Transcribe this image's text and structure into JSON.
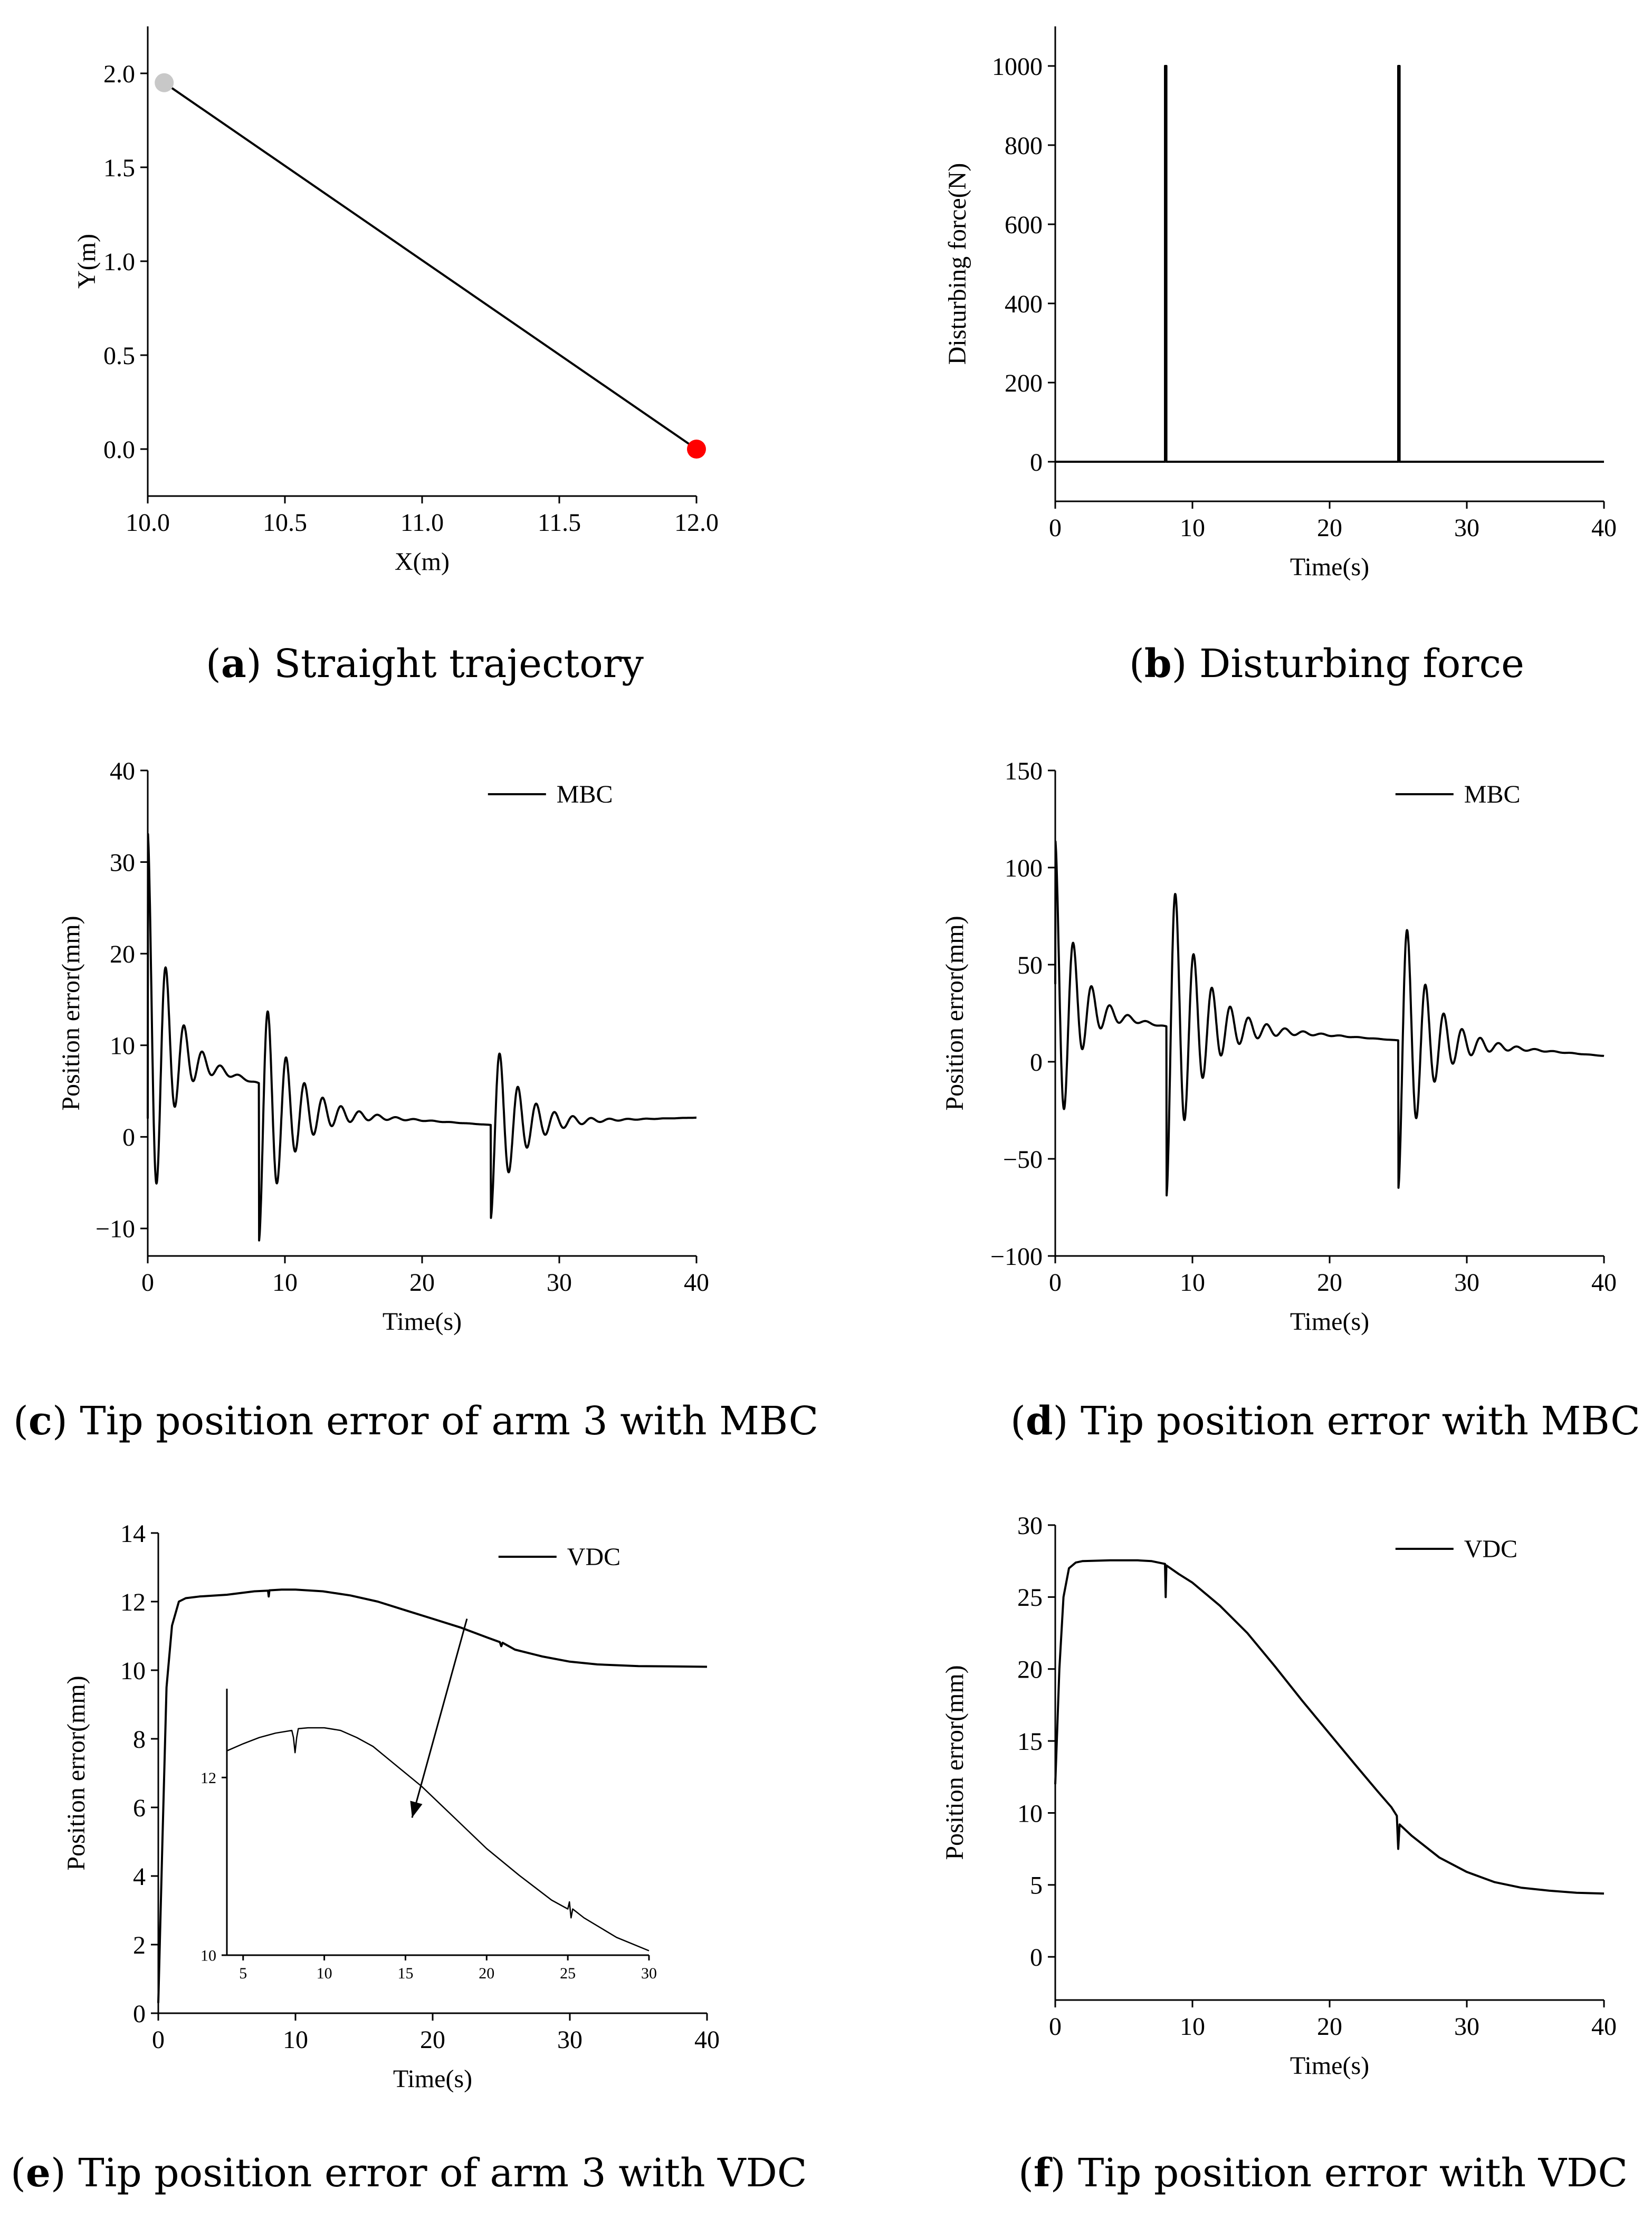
{
  "chart_data": [
    {
      "id": "a",
      "type": "line",
      "xlabel": "X(m)",
      "ylabel": "Y(m)",
      "xlim": [
        10.0,
        12.0
      ],
      "ylim": [
        -0.25,
        2.25
      ],
      "xticks": [
        10.0,
        10.5,
        11.0,
        11.5,
        12.0
      ],
      "xtick_labels": [
        "10.0",
        "10.5",
        "11.0",
        "11.5",
        "12.0"
      ],
      "yticks": [
        0.0,
        0.5,
        1.0,
        1.5,
        2.0
      ],
      "ytick_labels": [
        "0.0",
        "0.5",
        "1.0",
        "1.5",
        "2.0"
      ],
      "series": [
        {
          "name": "trajectory",
          "points": [
            [
              10.06,
              1.95
            ],
            [
              12.0,
              0.0
            ]
          ]
        }
      ],
      "markers": [
        {
          "name": "start-point",
          "x": 10.06,
          "y": 1.95,
          "color": "#c8c8c8"
        },
        {
          "name": "end-point",
          "x": 12.0,
          "y": 0.0,
          "color": "#ff0000"
        }
      ]
    },
    {
      "id": "b",
      "type": "line",
      "xlabel": "Time(s)",
      "ylabel": "Disturbing force(N)",
      "xlim": [
        0,
        40
      ],
      "ylim": [
        -100,
        1100
      ],
      "xticks": [
        0,
        10,
        20,
        30,
        40
      ],
      "xtick_labels": [
        "0",
        "10",
        "20",
        "30",
        "40"
      ],
      "yticks": [
        0,
        200,
        400,
        600,
        800,
        1000
      ],
      "ytick_labels": [
        "0",
        "200",
        "400",
        "600",
        "800",
        "1000"
      ],
      "series": [
        {
          "name": "force",
          "points": [
            [
              0,
              0
            ],
            [
              8,
              0
            ],
            [
              8,
              1000
            ],
            [
              8.1,
              1000
            ],
            [
              8.1,
              0
            ],
            [
              25,
              0
            ],
            [
              25,
              1000
            ],
            [
              25.1,
              1000
            ],
            [
              25.1,
              0
            ],
            [
              40,
              0
            ]
          ]
        }
      ]
    },
    {
      "id": "c",
      "type": "line",
      "xlabel": "Time(s)",
      "ylabel": "Position error(mm)",
      "xlim": [
        0,
        40
      ],
      "ylim": [
        -13,
        40
      ],
      "xticks": [
        0,
        10,
        20,
        30,
        40
      ],
      "xtick_labels": [
        "0",
        "10",
        "20",
        "30",
        "40"
      ],
      "yticks": [
        -10,
        0,
        10,
        20,
        30,
        40
      ],
      "ytick_labels": [
        "−10",
        "0",
        "10",
        "20",
        "30",
        "40"
      ],
      "legend": [
        "MBC"
      ],
      "series": [
        {
          "name": "MBC",
          "model": "damped",
          "start": 2,
          "segments": [
            {
              "t0": 0,
              "t1": 8.1,
              "base0": 10,
              "base1": 5.8,
              "amp": 23.5,
              "tau": 1.4,
              "freq": 0.75,
              "phase": 1.5708
            },
            {
              "t0": 8.1,
              "t1": 25,
              "base0": 3,
              "base1": 1.3,
              "amp": 14.5,
              "tau": 2.2,
              "freq": 0.75,
              "phase": -1.5708
            },
            {
              "t0": 25,
              "t1": 40,
              "base0": 1.5,
              "base1": 2.1,
              "amp": 10.5,
              "tau": 2.0,
              "freq": 0.75,
              "phase": -1.5708
            }
          ]
        }
      ]
    },
    {
      "id": "d",
      "type": "line",
      "xlabel": "Time(s)",
      "ylabel": "Position error(mm)",
      "xlim": [
        0,
        40
      ],
      "ylim": [
        -100,
        150
      ],
      "xticks": [
        0,
        10,
        20,
        30,
        40
      ],
      "xtick_labels": [
        "0",
        "10",
        "20",
        "30",
        "40"
      ],
      "yticks": [
        -100,
        -50,
        0,
        50,
        100,
        150
      ],
      "ytick_labels": [
        "−100",
        "−50",
        "0",
        "50",
        "100",
        "150"
      ],
      "legend": [
        "MBC"
      ],
      "series": [
        {
          "name": "MBC",
          "model": "damped",
          "start": 40,
          "segments": [
            {
              "t0": 0,
              "t1": 8.1,
              "base0": 30,
              "base1": 18,
              "amp": 85,
              "tau": 1.4,
              "freq": 0.75,
              "phase": 1.5708
            },
            {
              "t0": 8.1,
              "t1": 25,
              "base0": 20,
              "base1": 11,
              "amp": 90,
              "tau": 2.2,
              "freq": 0.75,
              "phase": -1.5708
            },
            {
              "t0": 25,
              "t1": 40,
              "base0": 12,
              "base1": 3,
              "amp": 78,
              "tau": 2.0,
              "freq": 0.75,
              "phase": -1.5708
            }
          ]
        }
      ]
    },
    {
      "id": "e",
      "type": "line",
      "xlabel": "Time(s)",
      "ylabel": "Position error(mm)",
      "xlim": [
        0,
        40
      ],
      "ylim": [
        0,
        14
      ],
      "xticks": [
        0,
        10,
        20,
        30,
        40
      ],
      "xtick_labels": [
        "0",
        "10",
        "20",
        "30",
        "40"
      ],
      "yticks": [
        0,
        2,
        4,
        6,
        8,
        10,
        12,
        14
      ],
      "ytick_labels": [
        "0",
        "2",
        "4",
        "6",
        "8",
        "10",
        "12",
        "14"
      ],
      "legend": [
        "VDC"
      ],
      "series": [
        {
          "name": "VDC",
          "points": [
            [
              0,
              0.3
            ],
            [
              0.3,
              5
            ],
            [
              0.6,
              9.5
            ],
            [
              1,
              11.3
            ],
            [
              1.5,
              12
            ],
            [
              2,
              12.1
            ],
            [
              3,
              12.15
            ],
            [
              5,
              12.2
            ],
            [
              7,
              12.3
            ],
            [
              8,
              12.32
            ],
            [
              8.05,
              12.15
            ],
            [
              8.1,
              12.33
            ],
            [
              9,
              12.35
            ],
            [
              10,
              12.35
            ],
            [
              12,
              12.3
            ],
            [
              14,
              12.18
            ],
            [
              16,
              12.0
            ],
            [
              18,
              11.75
            ],
            [
              20,
              11.5
            ],
            [
              22,
              11.25
            ],
            [
              24,
              10.95
            ],
            [
              24.9,
              10.82
            ],
            [
              25,
              10.7
            ],
            [
              25.1,
              10.8
            ],
            [
              26,
              10.6
            ],
            [
              28,
              10.4
            ],
            [
              30,
              10.25
            ],
            [
              32,
              10.17
            ],
            [
              35,
              10.12
            ],
            [
              40,
              10.1
            ]
          ]
        }
      ],
      "inset": {
        "xlim": [
          4,
          30
        ],
        "ylim": [
          10,
          13
        ],
        "xticks": [
          5,
          10,
          15,
          20,
          25,
          30
        ],
        "xtick_labels": [
          "5",
          "10",
          "15",
          "20",
          "25",
          "30"
        ],
        "yticks": [
          10,
          12
        ],
        "ytick_labels": [
          "10",
          "12"
        ],
        "series": [
          {
            "name": "VDC-zoom",
            "points": [
              [
                4,
                12.3
              ],
              [
                5,
                12.38
              ],
              [
                6,
                12.45
              ],
              [
                7,
                12.5
              ],
              [
                8,
                12.53
              ],
              [
                8.1,
                12.45
              ],
              [
                8.2,
                12.28
              ],
              [
                8.3,
                12.45
              ],
              [
                8.4,
                12.55
              ],
              [
                9,
                12.56
              ],
              [
                10,
                12.56
              ],
              [
                11,
                12.53
              ],
              [
                12,
                12.45
              ],
              [
                13,
                12.35
              ],
              [
                14,
                12.2
              ],
              [
                16,
                11.9
              ],
              [
                18,
                11.55
              ],
              [
                20,
                11.2
              ],
              [
                22,
                10.9
              ],
              [
                24,
                10.62
              ],
              [
                25,
                10.52
              ],
              [
                25.1,
                10.6
              ],
              [
                25.2,
                10.42
              ],
              [
                25.3,
                10.52
              ],
              [
                26,
                10.42
              ],
              [
                28,
                10.2
              ],
              [
                30,
                10.05
              ]
            ]
          }
        ],
        "arrow": {
          "from": [
            22.5,
            11.5
          ],
          "to": [
            18.5,
            5.7
          ]
        }
      }
    },
    {
      "id": "f",
      "type": "line",
      "xlabel": "Time(s)",
      "ylabel": "Position error(mm)",
      "xlim": [
        0,
        40
      ],
      "ylim": [
        -3,
        30
      ],
      "xticks": [
        0,
        10,
        20,
        30,
        40
      ],
      "xtick_labels": [
        "0",
        "10",
        "20",
        "30",
        "40"
      ],
      "yticks": [
        0,
        5,
        10,
        15,
        20,
        25,
        30
      ],
      "ytick_labels": [
        "0",
        "5",
        "10",
        "15",
        "20",
        "25",
        "30"
      ],
      "legend": [
        "VDC"
      ],
      "series": [
        {
          "name": "VDC",
          "points": [
            [
              0,
              12
            ],
            [
              0.3,
              20
            ],
            [
              0.6,
              25
            ],
            [
              1,
              27
            ],
            [
              1.5,
              27.4
            ],
            [
              2,
              27.5
            ],
            [
              4,
              27.55
            ],
            [
              6,
              27.55
            ],
            [
              7,
              27.5
            ],
            [
              8,
              27.3
            ],
            [
              8.05,
              25
            ],
            [
              8.1,
              27.2
            ],
            [
              9,
              26.6
            ],
            [
              10,
              26
            ],
            [
              12,
              24.4
            ],
            [
              14,
              22.5
            ],
            [
              16,
              20.2
            ],
            [
              18,
              17.8
            ],
            [
              20,
              15.5
            ],
            [
              22,
              13.2
            ],
            [
              23.5,
              11.5
            ],
            [
              24.5,
              10.4
            ],
            [
              24.9,
              9.8
            ],
            [
              25,
              7.5
            ],
            [
              25.1,
              9.2
            ],
            [
              26,
              8.4
            ],
            [
              28,
              6.9
            ],
            [
              30,
              5.9
            ],
            [
              32,
              5.2
            ],
            [
              34,
              4.8
            ],
            [
              36,
              4.6
            ],
            [
              38,
              4.45
            ],
            [
              40,
              4.4
            ]
          ]
        }
      ]
    }
  ],
  "captions": [
    {
      "letter": "a",
      "text": " Straight trajectory"
    },
    {
      "letter": "b",
      "text": " Disturbing force"
    },
    {
      "letter": "c",
      "text": " Tip position error of arm 3 with MBC"
    },
    {
      "letter": "d",
      "text": " Tip position error with MBC"
    },
    {
      "letter": "e",
      "text": " Tip position error of arm 3 with VDC"
    },
    {
      "letter": "f",
      "text": " Tip position error with VDC"
    }
  ]
}
